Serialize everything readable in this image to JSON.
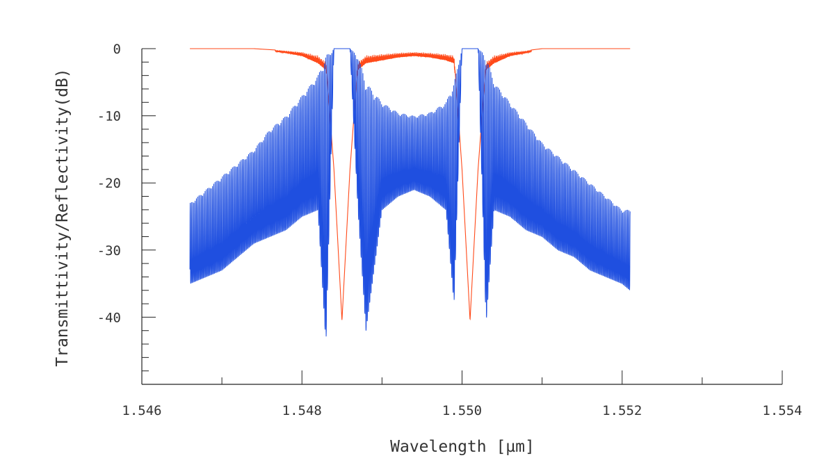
{
  "chart_data": {
    "type": "line",
    "title": "",
    "xlabel": "Wavelength [µm]",
    "ylabel": "Transmittivity/Reflectivity(dB)",
    "xlim": [
      1.546,
      1.554
    ],
    "ylim": [
      -50,
      0
    ],
    "x_tick_labels": [
      "1.546",
      "1.548",
      "1.550",
      "1.552",
      "1.554"
    ],
    "y_tick_labels": [
      "0",
      "-10",
      "-20",
      "-30",
      "-40"
    ],
    "x_ticks": [
      1.546,
      1.548,
      1.55,
      1.552,
      1.554
    ],
    "y_ticks": [
      0,
      -10,
      -20,
      -30,
      -40
    ],
    "grid": false,
    "legend": "none",
    "colors": {
      "series_blue": "#1f4fe0",
      "series_red": "#ff4a1a",
      "axis": "#222222"
    },
    "series": [
      {
        "color": "#1f4fe0",
        "x": [
          1.5466,
          1.5468,
          1.547,
          1.5472,
          1.5474,
          1.5476,
          1.5478,
          1.548,
          1.5482,
          1.5483,
          1.5484,
          1.5486,
          1.5487,
          1.5488,
          1.549,
          1.5492,
          1.5494,
          1.5496,
          1.5498,
          1.5499,
          1.55,
          1.5502,
          1.5503,
          1.5504,
          1.5506,
          1.5508,
          1.551,
          1.5512,
          1.5514,
          1.5516,
          1.5518,
          1.552,
          1.5521
        ],
        "y_upper": [
          -23,
          -21,
          -19,
          -17,
          -15,
          -12,
          -10,
          -7,
          -4,
          -1,
          0,
          0,
          -1,
          -5,
          -8,
          -9.5,
          -10,
          -9.5,
          -8,
          -5,
          0,
          0,
          -1,
          -5,
          -8,
          -11,
          -14,
          -16,
          -18,
          -20,
          -22,
          -24,
          -24
        ],
        "y_lower": [
          -35,
          -34,
          -33,
          -31,
          -29,
          -28,
          -27,
          -25,
          -24,
          -44,
          0,
          0,
          -24,
          -42,
          -24,
          -22,
          -21,
          -22,
          -24,
          -38,
          0,
          0,
          -41,
          -24,
          -25,
          -27,
          -28,
          -30,
          -31,
          -33,
          -34,
          -35,
          -36
        ]
      },
      {
        "color": "#ff4a1a",
        "x": [
          1.5466,
          1.5474,
          1.5478,
          1.548,
          1.5482,
          1.5483,
          1.5484,
          1.5485,
          1.5486,
          1.5487,
          1.5488,
          1.549,
          1.5492,
          1.5494,
          1.5496,
          1.5498,
          1.5499,
          1.55,
          1.5501,
          1.5502,
          1.5503,
          1.5504,
          1.5506,
          1.5508,
          1.551,
          1.5521
        ],
        "y": [
          0,
          0,
          -0.3,
          -0.5,
          -1,
          -2,
          -18,
          -40.5,
          -18,
          -2,
          -1,
          -0.8,
          -0.6,
          -0.5,
          -0.6,
          -0.8,
          -1,
          -18,
          -40.5,
          -18,
          -2,
          -1,
          -0.5,
          -0.3,
          0,
          0
        ]
      }
    ]
  }
}
